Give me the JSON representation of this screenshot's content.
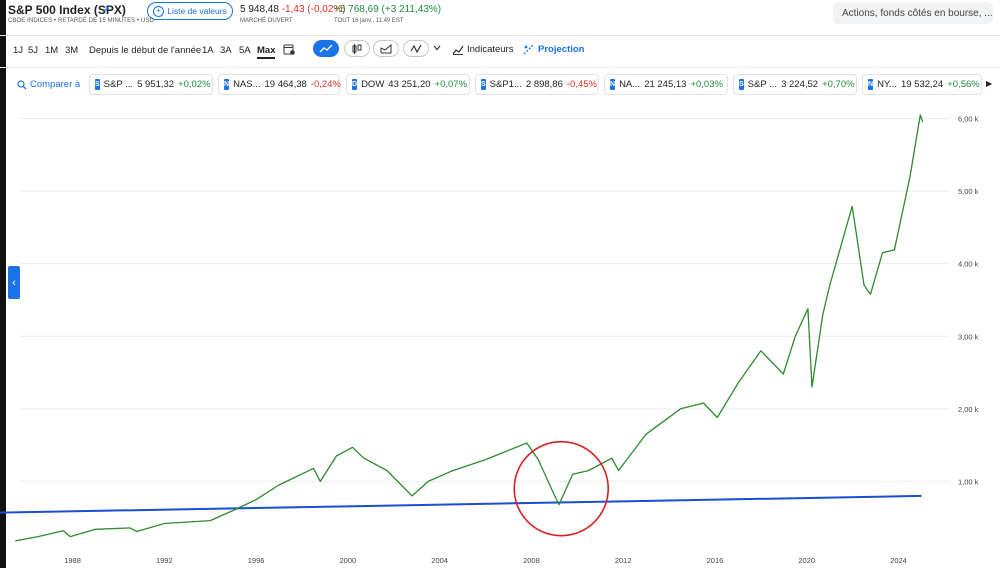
{
  "header": {
    "title": "S&P 500 Index (SPX)",
    "subtitle": "CBOE INDICES • RETARDÉ DE 15 MINUTES • USD",
    "watchlist_label": "Liste de valeurs",
    "price": "5 948,48",
    "change": "-1,43 (-0,02%)",
    "market_status": "MARCHÉ OUVERT",
    "alltime_change": "+5 768,69 (+3 211,43%)",
    "timestamp": "TOUT 16 janv., 11:49 EST",
    "search_placeholder": "Actions, fonds côtés en bourse, ..."
  },
  "ranges": [
    "1J",
    "5J",
    "1M",
    "3M",
    "Depuis le début de l'année",
    "1A",
    "3A",
    "5A",
    "Max"
  ],
  "active_range": "Max",
  "toolbar": {
    "indicators_label": "Indicateurs",
    "projection_label": "Projection",
    "chart_types": [
      "line-chart-icon",
      "candlestick-icon",
      "area-chart-icon",
      "draw-icon"
    ]
  },
  "compare": {
    "label": "Comparer à",
    "tiles": [
      {
        "badge": "S",
        "name": "S&P ...",
        "value": "5 951,32",
        "change": "+0,02%",
        "dir": "pos"
      },
      {
        "badge": "N",
        "name": "NAS...",
        "value": "19 464,38",
        "change": "-0,24%",
        "dir": "neg"
      },
      {
        "badge": "D",
        "name": "DOW",
        "value": "43 251,20",
        "change": "+0,07%",
        "dir": "pos"
      },
      {
        "badge": "S",
        "name": "S&P1...",
        "value": "2 898,86",
        "change": "-0,45%",
        "dir": "neg"
      },
      {
        "badge": "N",
        "name": "NA...",
        "value": "21 245,13",
        "change": "+0,03%",
        "dir": "pos"
      },
      {
        "badge": "S",
        "name": "S&P ...",
        "value": "3 224,52",
        "change": "+0,70%",
        "dir": "pos"
      },
      {
        "badge": "N",
        "name": "NY...",
        "value": "19 532,24",
        "change": "+0,56%",
        "dir": "pos"
      }
    ]
  },
  "colors": {
    "accent": "#1a73e8",
    "positive": "#1e8e3e",
    "negative": "#d93025",
    "line": "#2e8b2e",
    "trendline": "#1a4fd0",
    "highlight_circle": "#d62020"
  },
  "chart_data": {
    "type": "line",
    "series": [
      {
        "x": [
          1985.5,
          1986.5,
          1987.6,
          1987.9,
          1989,
          1990.5,
          1990.8,
          1992,
          1994,
          1995,
          1996,
          1997,
          1998.5,
          1998.8,
          1999.5,
          2000.2,
          2000.7,
          2001.7,
          2002.8,
          2003.5,
          2004.5,
          2006,
          2007.8,
          2008.3,
          2008.9,
          2009.2,
          2009.8,
          2010.5,
          2011.5,
          2011.8,
          2013,
          2014.5,
          2015.5,
          2016.1,
          2017,
          2018,
          2018.98,
          2019.5,
          2020.05,
          2020.23,
          2020.7,
          2021,
          2021.98,
          2022.5,
          2022.78,
          2023.3,
          2023.82,
          2024.5,
          2024.95,
          2025.05
        ],
        "y": [
          180,
          240,
          320,
          240,
          340,
          360,
          310,
          420,
          460,
          600,
          750,
          950,
          1180,
          1000,
          1350,
          1470,
          1320,
          1150,
          800,
          1000,
          1140,
          1300,
          1530,
          1300,
          880,
          680,
          1100,
          1150,
          1320,
          1150,
          1650,
          2000,
          2080,
          1880,
          2350,
          2800,
          2480,
          3000,
          3380,
          2300,
          3300,
          3700,
          4790,
          3700,
          3580,
          4150,
          4190,
          5200,
          6050,
          5950
        ]
      }
    ],
    "trendline": {
      "x": [
        1985,
        2025
      ],
      "y": [
        570,
        800
      ]
    },
    "annotation": {
      "type": "circle",
      "center_x": 2009.3,
      "center_y": 900
    },
    "xlim": [
      1985.1,
      2026.2
    ],
    "ylim": [
      0,
      6200
    ],
    "x_ticks": [
      "1988",
      "1992",
      "1996",
      "2000",
      "2004",
      "2008",
      "2012",
      "2016",
      "2020",
      "2024"
    ],
    "y_ticks": [
      "1,00 k",
      "2,00 k",
      "3,00 k",
      "4,00 k",
      "5,00 k",
      "6,00 k"
    ],
    "grid": true,
    "y_axis_side": "right"
  }
}
